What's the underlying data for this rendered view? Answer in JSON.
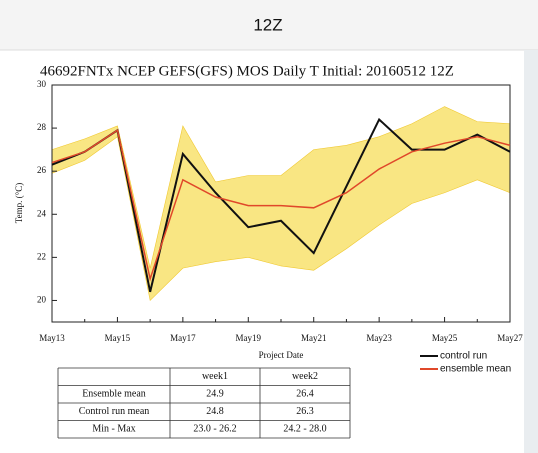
{
  "header": {
    "title": "12Z"
  },
  "chart_data": {
    "type": "line",
    "title": "46692FNTx NCEP GEFS(GFS) MOS Daily T  Initial: 20160512 12Z",
    "x_label": "Project  Date",
    "y_label": "Temp. (°C)",
    "categories": [
      "May13",
      null,
      "May15",
      null,
      "May17",
      null,
      "May19",
      null,
      "May21",
      null,
      "May23",
      null,
      "May25",
      null,
      "May27"
    ],
    "series": [
      {
        "name": "control run",
        "color": "#111111",
        "values": [
          26.3,
          26.9,
          27.9,
          20.4,
          26.8,
          25.0,
          23.4,
          23.7,
          22.2,
          25.3,
          28.4,
          27.0,
          27.0,
          27.7,
          26.9
        ]
      },
      {
        "name": "ensemble mean",
        "color": "#e0482a",
        "values": [
          26.4,
          26.9,
          27.9,
          21.0,
          25.6,
          24.8,
          24.4,
          24.4,
          24.3,
          25.0,
          26.1,
          26.9,
          27.3,
          27.6,
          27.2
        ]
      }
    ],
    "band": {
      "color": "#f7de5a",
      "upper": [
        27.0,
        27.5,
        28.1,
        21.5,
        28.1,
        25.5,
        25.8,
        25.8,
        27.0,
        27.2,
        27.6,
        28.2,
        29.0,
        28.3,
        28.2
      ],
      "lower": [
        25.9,
        26.5,
        27.6,
        20.0,
        21.5,
        21.8,
        22.0,
        21.6,
        21.4,
        22.4,
        23.5,
        24.5,
        25.0,
        25.6,
        25.0
      ]
    },
    "ylim": [
      19,
      30
    ],
    "yticks": [
      20,
      22,
      24,
      26,
      28,
      30
    ]
  },
  "table": {
    "columns": [
      "week1",
      "week2"
    ],
    "rows": [
      [
        "Ensemble mean",
        "24.9",
        "26.4"
      ],
      [
        "Control run mean",
        "24.8",
        "26.3"
      ],
      [
        "Min - Max",
        "23.0 - 26.2",
        "24.2 - 28.0"
      ]
    ]
  }
}
